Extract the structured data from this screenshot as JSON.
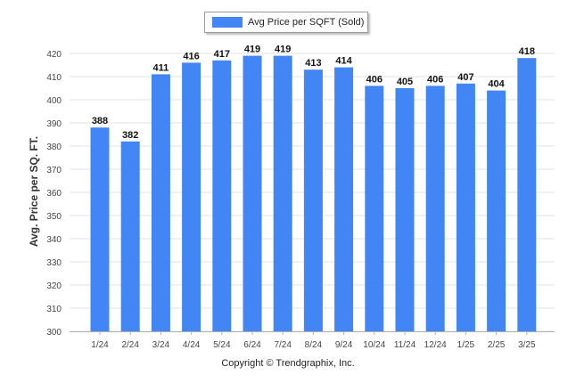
{
  "chart_data": {
    "type": "bar",
    "categories": [
      "1/24",
      "2/24",
      "3/24",
      "4/24",
      "5/24",
      "6/24",
      "7/24",
      "8/24",
      "9/24",
      "10/24",
      "11/24",
      "12/24",
      "1/25",
      "2/25",
      "3/25"
    ],
    "series": [
      {
        "name": "Avg Price per SQFT (Sold)",
        "values": [
          388,
          382,
          411,
          416,
          417,
          419,
          419,
          413,
          414,
          406,
          405,
          406,
          407,
          404,
          418
        ]
      }
    ],
    "ylabel": "Avg. Price per SQ. FT.",
    "xlabel": "",
    "ylim": [
      300,
      420
    ],
    "yticks": [
      300,
      310,
      320,
      330,
      340,
      350,
      360,
      370,
      380,
      390,
      400,
      410,
      420
    ],
    "data_labels": true,
    "grid": true,
    "legend": "top-center",
    "bar_color": "#4285f4"
  },
  "footer": "Copyright © Trendgraphix, Inc."
}
